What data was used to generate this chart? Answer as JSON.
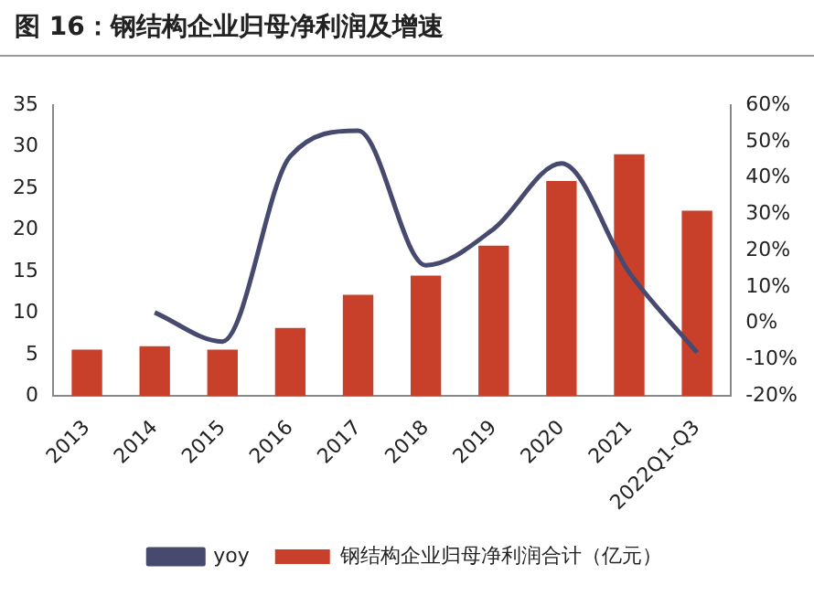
{
  "chart_data": {
    "type": "bar",
    "title": "图 16：钢结构企业归母净利润及增速",
    "categories": [
      "2013",
      "2014",
      "2015",
      "2016",
      "2017",
      "2018",
      "2019",
      "2020",
      "2021",
      "2022Q1-Q3"
    ],
    "series": [
      {
        "name": "钢结构企业归母净利润合计（亿元）",
        "color": "#c9402a",
        "values": [
          5.6,
          6.0,
          5.6,
          8.2,
          12.2,
          14.5,
          18.1,
          25.9,
          29.1,
          22.3
        ]
      },
      {
        "name": "yoy",
        "type": "line",
        "axis": "y2",
        "color": "#474a6e",
        "values": [
          null,
          3,
          -5,
          46,
          53,
          16,
          26,
          44,
          14,
          -8
        ]
      }
    ],
    "ylim": [
      0,
      35
    ],
    "yticks": [
      0,
      5,
      10,
      15,
      20,
      25,
      30,
      35
    ],
    "y2lim": [
      -20,
      60
    ],
    "y2ticks": [
      {
        "value": -20,
        "label": "-20%"
      },
      {
        "value": -10,
        "label": "-10%"
      },
      {
        "value": 0,
        "label": "0%"
      },
      {
        "value": 10,
        "label": "10%"
      },
      {
        "value": 20,
        "label": "20%"
      },
      {
        "value": 30,
        "label": "30%"
      },
      {
        "value": 40,
        "label": "40%"
      },
      {
        "value": 50,
        "label": "50%"
      },
      {
        "value": 60,
        "label": "60%"
      }
    ],
    "grid": false,
    "legend": "bottom",
    "marker": "none"
  }
}
